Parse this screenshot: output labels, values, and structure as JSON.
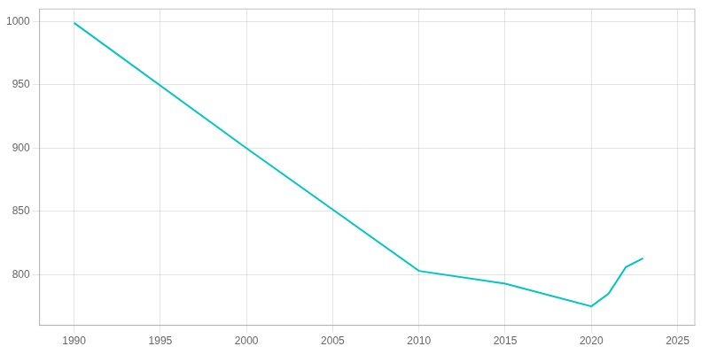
{
  "chart_data": {
    "type": "line",
    "x": [
      1990,
      2000,
      2010,
      2015,
      2020,
      2021,
      2022,
      2023
    ],
    "values": [
      999,
      900,
      803,
      793,
      775,
      785,
      806,
      813
    ],
    "color": "#00C5C5",
    "xlim": [
      1988,
      2026
    ],
    "xticks": [
      1990,
      1995,
      2000,
      2005,
      2010,
      2015,
      2020,
      2025
    ],
    "ylim": [
      760,
      1010
    ],
    "yticks": [
      800,
      850,
      900,
      950,
      1000
    ],
    "grid": true
  }
}
